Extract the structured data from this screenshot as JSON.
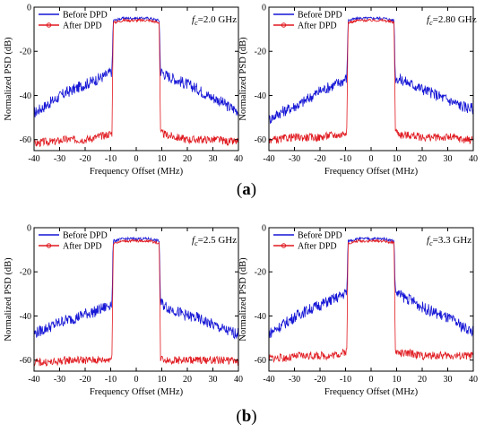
{
  "captions": {
    "a": "(a)",
    "b": "(b)"
  },
  "colors": {
    "before": "#1515d6",
    "after": "#e0191f",
    "axis": "#000000"
  },
  "chart_data": [
    {
      "type": "line",
      "panel": "top-left",
      "fc_prefix": "f",
      "fc_sub": "c",
      "fc_value": "=2.0 GHz",
      "xlabel": "Frequency Offset (MHz)",
      "ylabel": "Normalized PSD (dB)",
      "xlim": [
        -40,
        40
      ],
      "ylim": [
        -65,
        0
      ],
      "xticks": [
        "-40",
        "-30",
        "-20",
        "-10",
        "0",
        "10",
        "20",
        "30",
        "40"
      ],
      "yticks": [
        "0",
        "-20",
        "-40",
        "-60"
      ],
      "legend": {
        "position": "top-left",
        "entries": [
          "Before DPD",
          "After DPD"
        ]
      },
      "series": [
        {
          "name": "Before DPD",
          "values": [
            [
              -40,
              -48
            ],
            [
              -36,
              -45
            ],
            [
              -32,
              -42
            ],
            [
              -28,
              -39
            ],
            [
              -24,
              -37
            ],
            [
              -20,
              -35
            ],
            [
              -16,
              -33
            ],
            [
              -12,
              -31
            ],
            [
              -9.5,
              -29
            ],
            [
              -9,
              -6
            ],
            [
              -5,
              -5
            ],
            [
              0,
              -5
            ],
            [
              5,
              -5
            ],
            [
              9,
              -6
            ],
            [
              9.5,
              -29
            ],
            [
              12,
              -31
            ],
            [
              16,
              -33
            ],
            [
              20,
              -35
            ],
            [
              24,
              -37
            ],
            [
              28,
              -40
            ],
            [
              32,
              -42
            ],
            [
              36,
              -45
            ],
            [
              40,
              -47
            ]
          ]
        },
        {
          "name": "After DPD",
          "values": [
            [
              -40,
              -62
            ],
            [
              -36,
              -61
            ],
            [
              -32,
              -61
            ],
            [
              -28,
              -60
            ],
            [
              -24,
              -60
            ],
            [
              -20,
              -60
            ],
            [
              -16,
              -59
            ],
            [
              -12,
              -58
            ],
            [
              -9.5,
              -57
            ],
            [
              -9,
              -7
            ],
            [
              -5,
              -6
            ],
            [
              0,
              -6
            ],
            [
              5,
              -6
            ],
            [
              9,
              -7
            ],
            [
              9.5,
              -57
            ],
            [
              12,
              -58
            ],
            [
              16,
              -59
            ],
            [
              20,
              -60
            ],
            [
              24,
              -60
            ],
            [
              28,
              -60
            ],
            [
              32,
              -60
            ],
            [
              36,
              -61
            ],
            [
              40,
              -61
            ]
          ]
        }
      ]
    },
    {
      "type": "line",
      "panel": "top-right",
      "fc_prefix": "f",
      "fc_sub": "c",
      "fc_value": "=2.80 GHz",
      "xlabel": "Frequency Offset (MHz)",
      "ylabel": "Normalized PSD (dB)",
      "xlim": [
        -40,
        40
      ],
      "ylim": [
        -65,
        0
      ],
      "xticks": [
        "-40",
        "-30",
        "-20",
        "-10",
        "0",
        "10",
        "20",
        "30",
        "40"
      ],
      "yticks": [
        "0",
        "-20",
        "-40",
        "-60"
      ],
      "legend": {
        "position": "top-left",
        "entries": [
          "Before DPD",
          "After DPD"
        ]
      },
      "series": [
        {
          "name": "Before DPD",
          "values": [
            [
              -40,
              -51
            ],
            [
              -36,
              -48
            ],
            [
              -32,
              -46
            ],
            [
              -28,
              -44
            ],
            [
              -24,
              -41
            ],
            [
              -20,
              -38
            ],
            [
              -16,
              -36
            ],
            [
              -12,
              -34
            ],
            [
              -9.5,
              -32
            ],
            [
              -9,
              -6
            ],
            [
              -5,
              -5
            ],
            [
              0,
              -5
            ],
            [
              5,
              -5
            ],
            [
              9,
              -6
            ],
            [
              9.5,
              -32
            ],
            [
              12,
              -33
            ],
            [
              16,
              -35
            ],
            [
              20,
              -37
            ],
            [
              24,
              -39
            ],
            [
              28,
              -41
            ],
            [
              32,
              -43
            ],
            [
              36,
              -45
            ],
            [
              40,
              -46
            ]
          ]
        },
        {
          "name": "After DPD",
          "values": [
            [
              -40,
              -60
            ],
            [
              -36,
              -60
            ],
            [
              -32,
              -59
            ],
            [
              -28,
              -59
            ],
            [
              -24,
              -59
            ],
            [
              -20,
              -59
            ],
            [
              -16,
              -58
            ],
            [
              -12,
              -58
            ],
            [
              -9.5,
              -56
            ],
            [
              -9,
              -7
            ],
            [
              -5,
              -6
            ],
            [
              0,
              -6
            ],
            [
              5,
              -6
            ],
            [
              9,
              -7
            ],
            [
              9.5,
              -56
            ],
            [
              12,
              -58
            ],
            [
              16,
              -58
            ],
            [
              20,
              -59
            ],
            [
              24,
              -59
            ],
            [
              28,
              -59
            ],
            [
              32,
              -59
            ],
            [
              36,
              -60
            ],
            [
              40,
              -60
            ]
          ]
        }
      ]
    },
    {
      "type": "line",
      "panel": "bottom-left",
      "fc_prefix": "f",
      "fc_sub": "c",
      "fc_value": "=2.5 GHz",
      "xlabel": "Frequency Offset (MHz)",
      "ylabel": "Normalized PSD (dB)",
      "xlim": [
        -40,
        40
      ],
      "ylim": [
        -65,
        0
      ],
      "xticks": [
        "-40",
        "-30",
        "-20",
        "-10",
        "0",
        "10",
        "20",
        "30",
        "40"
      ],
      "yticks": [
        "0",
        "-20",
        "-40",
        "-60"
      ],
      "legend": {
        "position": "top-left",
        "entries": [
          "Before DPD",
          "After DPD"
        ]
      },
      "series": [
        {
          "name": "Before DPD",
          "values": [
            [
              -40,
              -48
            ],
            [
              -36,
              -46
            ],
            [
              -32,
              -44
            ],
            [
              -28,
              -42
            ],
            [
              -24,
              -41
            ],
            [
              -20,
              -39
            ],
            [
              -16,
              -38
            ],
            [
              -12,
              -36
            ],
            [
              -9.5,
              -34
            ],
            [
              -9,
              -6
            ],
            [
              -5,
              -5
            ],
            [
              0,
              -5
            ],
            [
              5,
              -5
            ],
            [
              9,
              -6
            ],
            [
              9.5,
              -34
            ],
            [
              12,
              -36
            ],
            [
              16,
              -38
            ],
            [
              20,
              -40
            ],
            [
              24,
              -41
            ],
            [
              28,
              -43
            ],
            [
              32,
              -45
            ],
            [
              36,
              -47
            ],
            [
              40,
              -48
            ]
          ]
        },
        {
          "name": "After DPD",
          "values": [
            [
              -40,
              -61
            ],
            [
              -36,
              -61
            ],
            [
              -32,
              -61
            ],
            [
              -28,
              -60
            ],
            [
              -24,
              -60
            ],
            [
              -20,
              -60
            ],
            [
              -16,
              -60
            ],
            [
              -12,
              -60
            ],
            [
              -9.5,
              -59
            ],
            [
              -9,
              -7
            ],
            [
              -5,
              -6
            ],
            [
              0,
              -6
            ],
            [
              5,
              -6
            ],
            [
              9,
              -7
            ],
            [
              9.5,
              -59
            ],
            [
              12,
              -60
            ],
            [
              16,
              -60
            ],
            [
              20,
              -60
            ],
            [
              24,
              -60
            ],
            [
              28,
              -60
            ],
            [
              32,
              -60
            ],
            [
              36,
              -60
            ],
            [
              40,
              -61
            ]
          ]
        }
      ]
    },
    {
      "type": "line",
      "panel": "bottom-right",
      "fc_prefix": "f",
      "fc_sub": "c",
      "fc_value": "=3.3 GHz",
      "xlabel": "Frequency Offset (MHz)",
      "ylabel": "Normalized PSD (dB)",
      "xlim": [
        -40,
        40
      ],
      "ylim": [
        -65,
        0
      ],
      "xticks": [
        "-40",
        "-30",
        "-20",
        "-10",
        "0",
        "10",
        "20",
        "30",
        "40"
      ],
      "yticks": [
        "0",
        "-20",
        "-40",
        "-60"
      ],
      "legend": {
        "position": "top-left",
        "entries": [
          "Before DPD",
          "After DPD"
        ]
      },
      "series": [
        {
          "name": "Before DPD",
          "values": [
            [
              -40,
              -48
            ],
            [
              -36,
              -45
            ],
            [
              -32,
              -42
            ],
            [
              -28,
              -39
            ],
            [
              -24,
              -37
            ],
            [
              -20,
              -35
            ],
            [
              -16,
              -33
            ],
            [
              -12,
              -31
            ],
            [
              -9.5,
              -29
            ],
            [
              -9,
              -6
            ],
            [
              -5,
              -5
            ],
            [
              0,
              -5
            ],
            [
              5,
              -5
            ],
            [
              9,
              -6
            ],
            [
              9.5,
              -29
            ],
            [
              12,
              -31
            ],
            [
              16,
              -33
            ],
            [
              20,
              -36
            ],
            [
              24,
              -38
            ],
            [
              28,
              -40
            ],
            [
              32,
              -42
            ],
            [
              36,
              -45
            ],
            [
              40,
              -47
            ]
          ]
        },
        {
          "name": "After DPD",
          "values": [
            [
              -40,
              -59
            ],
            [
              -36,
              -59
            ],
            [
              -32,
              -59
            ],
            [
              -28,
              -58
            ],
            [
              -24,
              -58
            ],
            [
              -20,
              -58
            ],
            [
              -16,
              -58
            ],
            [
              -12,
              -57
            ],
            [
              -9.5,
              -56
            ],
            [
              -9,
              -7
            ],
            [
              -5,
              -6
            ],
            [
              0,
              -6
            ],
            [
              5,
              -6
            ],
            [
              9,
              -7
            ],
            [
              9.5,
              -56
            ],
            [
              12,
              -57
            ],
            [
              16,
              -57
            ],
            [
              20,
              -58
            ],
            [
              24,
              -58
            ],
            [
              28,
              -58
            ],
            [
              32,
              -58
            ],
            [
              36,
              -58
            ],
            [
              40,
              -58
            ]
          ]
        }
      ]
    }
  ]
}
